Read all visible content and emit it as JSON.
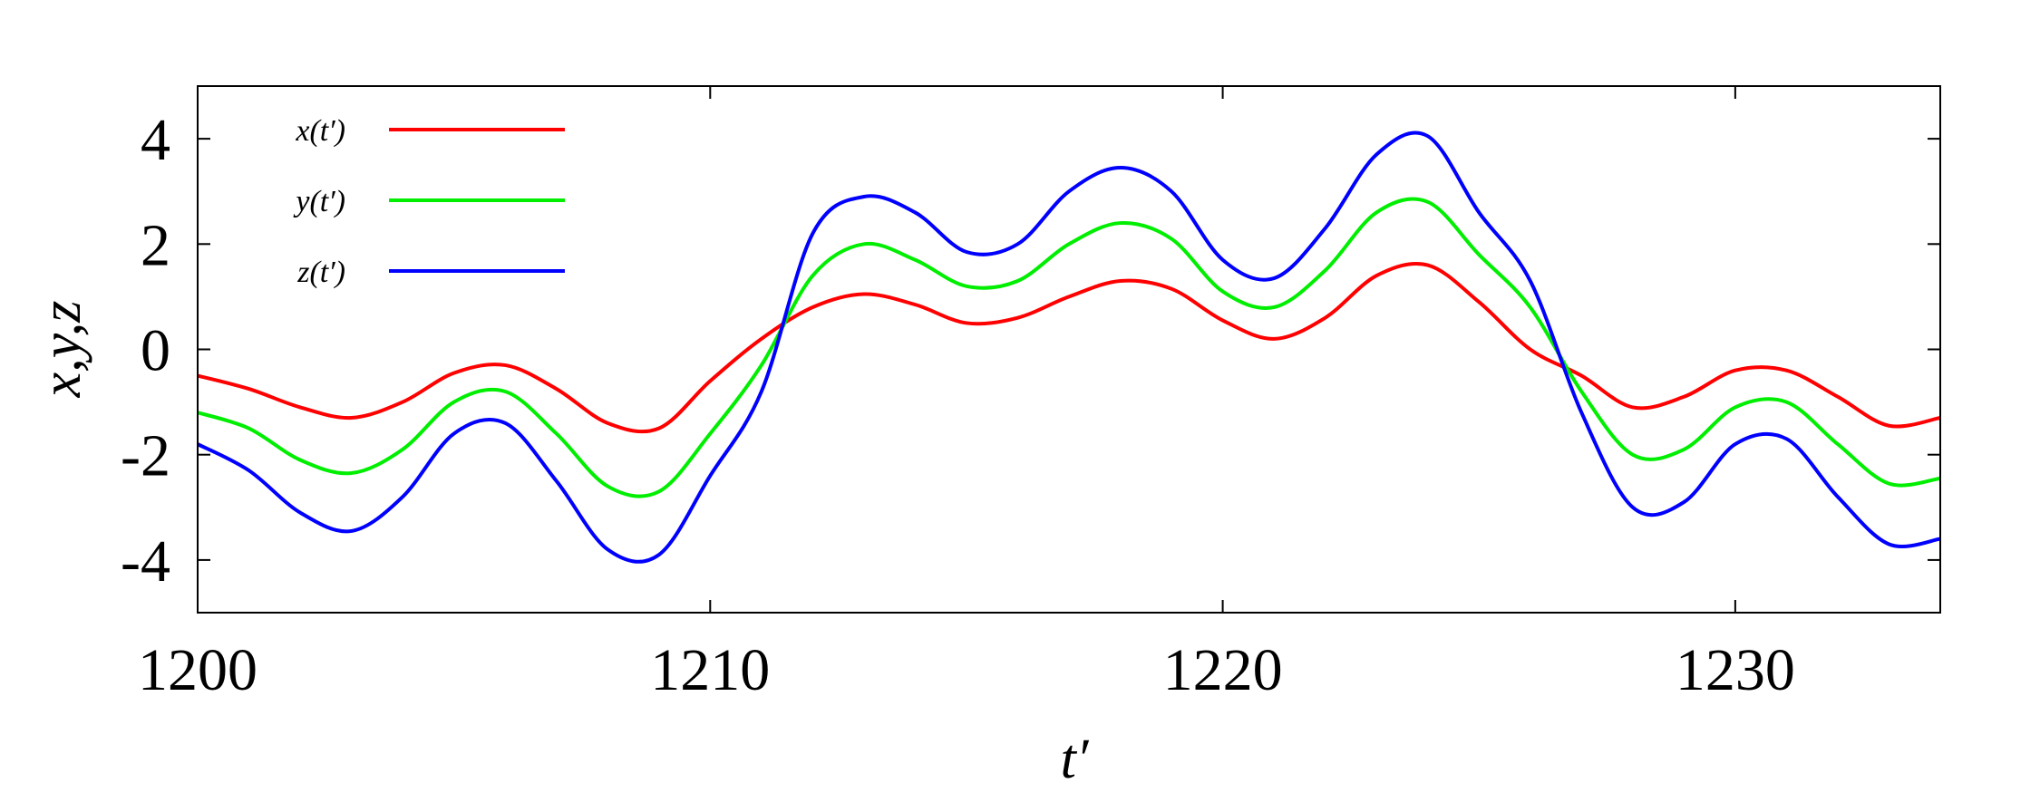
{
  "chart_data": {
    "type": "line",
    "x_label": "t′",
    "y_label": "x,y,z",
    "xlim": [
      1200,
      1234
    ],
    "ylim": [
      -5,
      5
    ],
    "xticks": [
      1200,
      1210,
      1220,
      1230
    ],
    "yticks": [
      -4,
      -2,
      0,
      2,
      4
    ],
    "legend": "upper left",
    "x": [
      1200,
      1201,
      1202,
      1203,
      1204,
      1205,
      1206,
      1207,
      1208,
      1209,
      1210,
      1211,
      1212,
      1213,
      1214,
      1215,
      1216,
      1217,
      1218,
      1219,
      1220,
      1221,
      1222,
      1223,
      1224,
      1225,
      1226,
      1227,
      1228,
      1229,
      1230,
      1231,
      1232,
      1233,
      1234
    ],
    "series": [
      {
        "name": "x(t′)",
        "color": "#ff0000",
        "values": [
          -0.5,
          -0.75,
          -1.1,
          -1.3,
          -1.0,
          -0.45,
          -0.3,
          -0.75,
          -1.4,
          -1.5,
          -0.6,
          0.2,
          0.8,
          1.05,
          0.85,
          0.5,
          0.6,
          1.0,
          1.3,
          1.15,
          0.55,
          0.2,
          0.6,
          1.4,
          1.6,
          0.9,
          0.0,
          -0.5,
          -1.1,
          -0.9,
          -0.4,
          -0.4,
          -0.9,
          -1.45,
          -1.3
        ]
      },
      {
        "name": "y(t′)",
        "color": "#00ee00",
        "values": [
          -1.2,
          -1.5,
          -2.1,
          -2.35,
          -1.9,
          -1.0,
          -0.8,
          -1.6,
          -2.6,
          -2.7,
          -1.6,
          -0.3,
          1.4,
          2.0,
          1.7,
          1.2,
          1.3,
          2.0,
          2.4,
          2.1,
          1.1,
          0.8,
          1.5,
          2.6,
          2.8,
          1.8,
          0.8,
          -0.8,
          -2.0,
          -1.9,
          -1.1,
          -1.0,
          -1.8,
          -2.55,
          -2.45
        ]
      },
      {
        "name": "z(t′)",
        "color": "#0000ff",
        "values": [
          -1.8,
          -2.3,
          -3.1,
          -3.45,
          -2.8,
          -1.6,
          -1.4,
          -2.5,
          -3.8,
          -3.9,
          -2.4,
          -0.8,
          2.2,
          2.9,
          2.6,
          1.85,
          2.0,
          3.0,
          3.45,
          3.0,
          1.7,
          1.35,
          2.3,
          3.7,
          4.05,
          2.6,
          1.3,
          -1.2,
          -3.0,
          -2.9,
          -1.8,
          -1.7,
          -2.8,
          -3.7,
          -3.6
        ]
      }
    ]
  }
}
